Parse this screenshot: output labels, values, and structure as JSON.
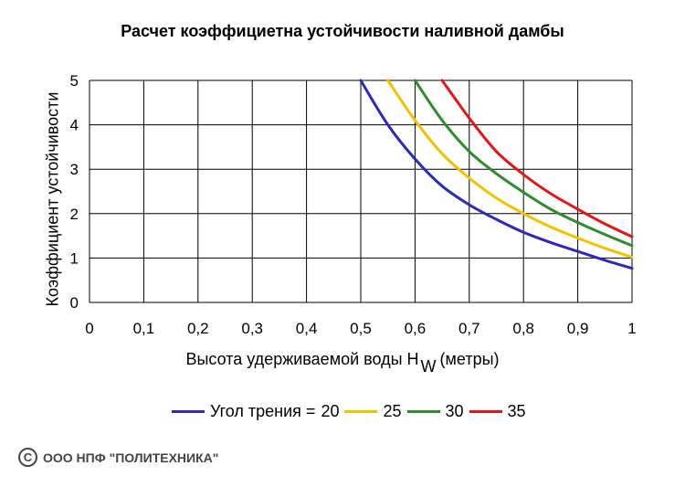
{
  "chart_data": {
    "type": "line",
    "title": "Расчет коэффициетна устойчивости наливной дамбы",
    "ylabel": "Коэффициент устойчивости",
    "xlabel_main": "Высота удерживаемой воды H",
    "xlabel_sub": "W",
    "xlabel_unit": "(метры)",
    "xlim": [
      0,
      1
    ],
    "ylim": [
      0,
      5
    ],
    "xticks": [
      "0",
      "0,1",
      "0,2",
      "0,3",
      "0,4",
      "0,5",
      "0,6",
      "0,7",
      "0,8",
      "0,9",
      "1"
    ],
    "yticks": [
      "0",
      "1",
      "2",
      "3",
      "4",
      "5"
    ],
    "grid": true,
    "legend_position": "bottom",
    "legend_title": "Угол трения =",
    "series": [
      {
        "name": "20",
        "color": "#2b2bb8",
        "x": [
          0.5,
          0.55,
          0.6,
          0.65,
          0.7,
          0.75,
          0.8,
          0.85,
          0.9,
          0.95,
          1.0
        ],
        "y": [
          5.0,
          4.0,
          3.23,
          2.62,
          2.2,
          1.87,
          1.58,
          1.35,
          1.15,
          0.95,
          0.77
        ]
      },
      {
        "name": "25",
        "color": "#f2c200",
        "x": [
          0.55,
          0.6,
          0.65,
          0.7,
          0.75,
          0.8,
          0.85,
          0.9,
          0.95,
          1.0
        ],
        "y": [
          5.0,
          4.1,
          3.35,
          2.8,
          2.35,
          2.0,
          1.7,
          1.45,
          1.22,
          1.02
        ]
      },
      {
        "name": "30",
        "color": "#2e8b2e",
        "x": [
          0.6,
          0.65,
          0.7,
          0.75,
          0.8,
          0.85,
          0.9,
          0.95,
          1.0
        ],
        "y": [
          5.0,
          4.1,
          3.4,
          2.9,
          2.48,
          2.1,
          1.8,
          1.53,
          1.28
        ]
      },
      {
        "name": "35",
        "color": "#e01818",
        "x": [
          0.65,
          0.7,
          0.75,
          0.8,
          0.85,
          0.9,
          0.95,
          1.0
        ],
        "y": [
          5.0,
          4.15,
          3.4,
          2.88,
          2.45,
          2.1,
          1.77,
          1.48
        ]
      }
    ]
  },
  "copyright": {
    "symbol": "C",
    "text": "ООО НПФ \"ПОЛИТЕХНИКА\""
  }
}
